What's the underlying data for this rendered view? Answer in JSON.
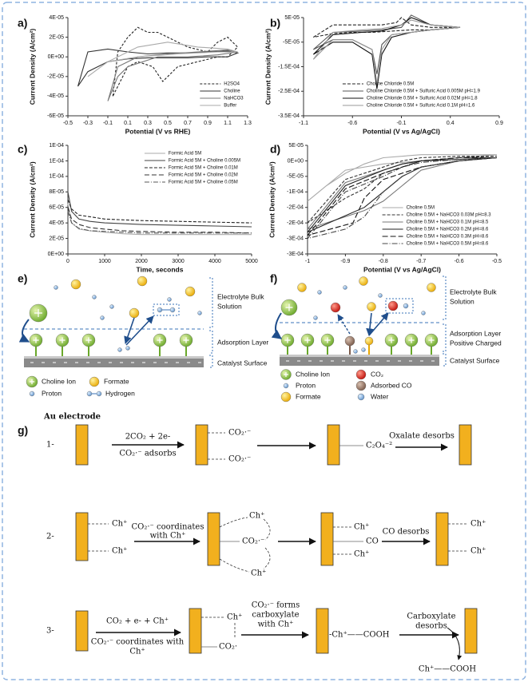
{
  "chart_data": [
    {
      "type": "line",
      "panel_label": "a)",
      "xlabel": "Potential  (V vs RHE)",
      "ylabel": "Current Density (A/cm²)",
      "xlim": [
        -0.5,
        1.3
      ],
      "ylim": [
        -6e-05,
        4e-05
      ],
      "xticks": [
        -0.5,
        -0.3,
        -0.1,
        0.1,
        0.3,
        0.5,
        0.7,
        0.9,
        1.1,
        1.3
      ],
      "yticks": [
        {
          "value": 4e-05,
          "label": "4E-05"
        },
        {
          "value": 2e-05,
          "label": "2E-05"
        },
        {
          "value": 0,
          "label": "0E+00"
        },
        {
          "value": -2e-05,
          "label": "-2E-05"
        },
        {
          "value": -4e-05,
          "label": "-4E-05"
        },
        {
          "value": -6e-05,
          "label": "-6E-05"
        }
      ],
      "legend": "lower right",
      "series": [
        {
          "name": "H2SO4",
          "color": "#222222",
          "dash": "3 2",
          "x": [
            -0.05,
            0.0,
            0.1,
            0.2,
            0.3,
            0.4,
            0.5,
            0.7,
            0.9,
            1.0,
            1.1,
            1.2,
            1.1,
            1.0,
            0.8,
            0.6,
            0.45,
            0.35,
            0.2,
            0.1,
            0.0,
            -0.05
          ],
          "values": [
            -4e-05,
            5e-06,
            2e-05,
            3e-05,
            2.5e-05,
            2.5e-05,
            2e-05,
            1e-05,
            5e-06,
            1.5e-05,
            2e-05,
            1e-05,
            0,
            0,
            -5e-06,
            -1e-05,
            -2.5e-05,
            -1e-05,
            -5e-06,
            -1e-05,
            -3e-05,
            -4e-05
          ]
        },
        {
          "name": "Choline",
          "color": "#333333",
          "dash": "",
          "x": [
            -0.4,
            -0.3,
            -0.1,
            0.1,
            0.3,
            0.5,
            0.7,
            0.9,
            1.1,
            1.2,
            1.1,
            0.9,
            0.7,
            0.5,
            0.3,
            0.1,
            -0.1,
            -0.3,
            -0.4
          ],
          "values": [
            -3e-05,
            5e-06,
            8e-06,
            5e-06,
            3e-06,
            4e-06,
            4e-06,
            5e-06,
            6e-06,
            4e-06,
            0,
            0,
            -1e-06,
            -1e-06,
            -1e-06,
            -2e-06,
            -5e-06,
            -1.5e-05,
            -3e-05
          ]
        },
        {
          "name": "NaHCO3",
          "color": "#777777",
          "dash": "",
          "x": [
            -0.1,
            0.0,
            0.2,
            0.5,
            0.8,
            1.1,
            1.2,
            1.0,
            0.7,
            0.4,
            0.1,
            0.0,
            -0.1
          ],
          "values": [
            -4.5e-05,
            -1e-05,
            0,
            3e-06,
            5e-06,
            7e-06,
            5e-06,
            2e-06,
            0,
            0,
            -1e-05,
            -2e-05,
            -4.5e-05
          ]
        },
        {
          "name": "Buffer",
          "color": "#aaaaaa",
          "dash": "",
          "x": [
            -0.3,
            -0.1,
            0.2,
            0.5,
            0.8,
            1.1,
            1.2,
            1.0,
            0.6,
            0.2,
            -0.1,
            -0.3
          ],
          "values": [
            -2e-05,
            -5e-06,
            1e-05,
            1.5e-05,
            1e-05,
            8e-06,
            5e-06,
            5e-06,
            3e-06,
            0,
            -5e-06,
            -2e-05
          ]
        }
      ]
    },
    {
      "type": "line",
      "panel_label": "b)",
      "xlabel": "Potential  (V vs Ag/AgCl)",
      "ylabel": "Current Density (A/cm²)",
      "xlim": [
        -1.1,
        0.9
      ],
      "ylim": [
        -0.00035,
        5e-05
      ],
      "xticks": [
        -1.1,
        -0.6,
        -0.1,
        0.4,
        0.9
      ],
      "yticks": [
        {
          "value": 5e-05,
          "label": "5E-05"
        },
        {
          "value": -5e-05,
          "label": "-5E-05"
        },
        {
          "value": -0.00015,
          "label": "-1.5E-04"
        },
        {
          "value": -0.00025,
          "label": "-2.5E-04"
        },
        {
          "value": -0.00035,
          "label": "-3.5E-04"
        }
      ],
      "legend": "lower right",
      "series": [
        {
          "name": "Choline Chloride 0.5M",
          "color": "#222222",
          "dash": "4 2",
          "x": [
            -1.0,
            -0.8,
            -0.5,
            -0.3,
            -0.15,
            -0.1,
            0.0,
            0.2,
            0.5,
            0.2,
            0.0,
            -0.2,
            -0.4,
            -0.6,
            -0.8,
            -1.0
          ],
          "values": [
            -3e-05,
            2e-05,
            2e-05,
            2e-05,
            3e-05,
            5e-05,
            2e-05,
            1e-05,
            1e-05,
            0,
            0,
            -5e-06,
            -1e-05,
            -1e-05,
            -1.5e-05,
            -3e-05
          ]
        },
        {
          "name": "Choline Chloride 0.5M + Sulfuric Acid 0.005M pH=1.9",
          "color": "#555555",
          "dash": "",
          "x": [
            -1.0,
            -0.8,
            -0.5,
            -0.3,
            -0.1,
            0.0,
            0.2,
            0.5,
            0.2,
            0.0,
            -0.2,
            -0.3,
            -0.35,
            -0.4,
            -0.6,
            -0.8,
            -1.0
          ],
          "values": [
            -8e-05,
            -1e-05,
            -5e-06,
            0,
            1e-05,
            6e-05,
            2e-05,
            1e-05,
            0,
            -1e-05,
            -2e-05,
            -6e-05,
            -0.00018,
            -8e-05,
            -4e-05,
            -4e-05,
            -8e-05
          ]
        },
        {
          "name": "Choline Chloride 0.5M + Sulfuric Acid 0.02M pH=1.8",
          "color": "#111111",
          "dash": "",
          "x": [
            -1.0,
            -0.8,
            -0.5,
            -0.3,
            -0.1,
            0.0,
            0.2,
            0.5,
            0.2,
            0.0,
            -0.2,
            -0.3,
            -0.35,
            -0.4,
            -0.6,
            -0.8,
            -1.0
          ],
          "values": [
            -0.0001,
            -2e-05,
            -1e-05,
            -5e-06,
            2e-05,
            5e-05,
            2e-05,
            1e-05,
            0,
            -1e-05,
            -3e-05,
            -0.0001,
            -0.00024,
            -0.0001,
            -5e-05,
            -5e-05,
            -0.0001
          ]
        },
        {
          "name": "Choline Chloride 0.5M + Sulfuric Acid 0.1M pH=1.6",
          "color": "#999999",
          "dash": "",
          "x": [
            -1.0,
            -0.8,
            -0.5,
            -0.3,
            -0.1,
            0.0,
            0.2,
            0.5,
            0.2,
            0.0,
            -0.2,
            -0.3,
            -0.35,
            -0.4,
            -0.6,
            -0.8,
            -1.0
          ],
          "values": [
            -0.00012,
            -1e-05,
            0,
            5e-06,
            2e-05,
            4e-05,
            2e-05,
            1e-05,
            0,
            -1e-05,
            -2e-05,
            -8e-05,
            -0.00022,
            -8e-05,
            -4e-05,
            -4e-05,
            -0.00012
          ]
        }
      ]
    },
    {
      "type": "line",
      "panel_label": "c)",
      "xlabel": "Time, seconds",
      "ylabel": "Current Density (A/cm²)",
      "xlim": [
        0,
        5000
      ],
      "ylim": [
        0,
        0.00014
      ],
      "xticks": [
        0,
        1000,
        2000,
        3000,
        4000,
        5000
      ],
      "yticks": [
        {
          "value": 0.00014,
          "label": "1E-04"
        },
        {
          "value": 0.00012,
          "label": "1E-04"
        },
        {
          "value": 0.0001,
          "label": "1E-04"
        },
        {
          "value": 8e-05,
          "label": "8E-05"
        },
        {
          "value": 6e-05,
          "label": "6E-05"
        },
        {
          "value": 4e-05,
          "label": "4E-05"
        },
        {
          "value": 2e-05,
          "label": "2E-05"
        },
        {
          "value": 0,
          "label": "0E+00"
        }
      ],
      "legend": "upper right",
      "series": [
        {
          "name": "Formic Acid 5M",
          "color": "#aaaaaa",
          "dash": "",
          "x": [
            0,
            100,
            300,
            600,
            1000,
            1500,
            2000,
            3000,
            4000,
            5000
          ],
          "values": [
            6.5e-05,
            4e-05,
            3.2e-05,
            3e-05,
            2.8e-05,
            2.6e-05,
            2.5e-05,
            2.5e-05,
            2.5e-05,
            2.5e-05
          ]
        },
        {
          "name": "Formic Acid 5M + Choline 0.005M",
          "color": "#444444",
          "dash": "",
          "x": [
            0,
            100,
            300,
            600,
            1000,
            1500,
            2000,
            3000,
            4000,
            5000
          ],
          "values": [
            8e-05,
            5.5e-05,
            4.5e-05,
            4.2e-05,
            4e-05,
            3.9e-05,
            3.8e-05,
            3.7e-05,
            3.6e-05,
            3.5e-05
          ]
        },
        {
          "name": "Formic Acid 5M + Choline 0.01M",
          "color": "#222222",
          "dash": "4 2",
          "x": [
            0,
            100,
            300,
            600,
            1000,
            1500,
            2000,
            3000,
            4000,
            5000
          ],
          "values": [
            7e-05,
            5.8e-05,
            5e-05,
            4.8e-05,
            4.5e-05,
            4.4e-05,
            4.3e-05,
            4.2e-05,
            4.1e-05,
            4e-05
          ]
        },
        {
          "name": "Formic Acid 5M + Choline 0.02M",
          "color": "#333333",
          "dash": "6 3",
          "x": [
            0,
            100,
            300,
            600,
            1000,
            1500,
            2000,
            3000,
            4000,
            5000
          ],
          "values": [
            6e-05,
            4.5e-05,
            3.8e-05,
            3.4e-05,
            3.2e-05,
            3e-05,
            2.9e-05,
            2.8e-05,
            2.8e-05,
            2.7e-05
          ]
        },
        {
          "name": "Formic Acid 5M + Choline 0.05M",
          "color": "#555555",
          "dash": "6 2 1 2",
          "x": [
            0,
            100,
            300,
            600,
            1000,
            1500,
            2000,
            3000,
            4000,
            5000
          ],
          "values": [
            5.5e-05,
            4e-05,
            3.3e-05,
            3e-05,
            2.9e-05,
            2.8e-05,
            2.7e-05,
            2.7e-05,
            2.7e-05,
            2.7e-05
          ]
        }
      ]
    },
    {
      "type": "line",
      "panel_label": "d)",
      "xlabel": "Potential  (V vs Ag/AgCl)",
      "ylabel": "Current Density (A/cm²)",
      "xlim": [
        -1,
        -0.5
      ],
      "ylim": [
        -0.0003,
        5e-05
      ],
      "xticks": [
        -1,
        -0.9,
        -0.8,
        -0.7,
        -0.6,
        -0.5
      ],
      "yticks": [
        {
          "value": 5e-05,
          "label": "5E-05"
        },
        {
          "value": 0,
          "label": "0E+00"
        },
        {
          "value": -5e-05,
          "label": "-5E-05"
        },
        {
          "value": -0.0001,
          "label": "-1E-04"
        },
        {
          "value": -0.00015,
          "label": "-2E-04"
        },
        {
          "value": -0.0002,
          "label": "-2E-04"
        },
        {
          "value": -0.00025,
          "label": "-3E-04"
        },
        {
          "value": -0.0003,
          "label": "-3E-04"
        }
      ],
      "legend": "lower right",
      "series": [
        {
          "name": "Choline 0.5M",
          "color": "#aaaaaa",
          "dash": "",
          "x": [
            -1,
            -0.95,
            -0.9,
            -0.85,
            -0.8,
            -0.7,
            -0.6,
            -0.5,
            -0.6,
            -0.7,
            -0.8,
            -0.9,
            -1
          ],
          "values": [
            -0.00013,
            -8e-05,
            -4e-05,
            -1e-05,
            1e-05,
            2e-05,
            2e-05,
            2e-05,
            1e-05,
            0,
            -1e-05,
            -3e-05,
            -0.00013
          ]
        },
        {
          "name": "Choline 0.5M + NaHCO3 0.03M pH=8.3",
          "color": "#333333",
          "dash": "4 2",
          "x": [
            -1,
            -0.9,
            -0.8,
            -0.75,
            -0.7,
            -0.6,
            -0.5,
            -0.6,
            -0.7,
            -0.8,
            -0.85,
            -0.9,
            -1
          ],
          "values": [
            -0.0002,
            -6e-05,
            -2e-05,
            0,
            1e-05,
            1.5e-05,
            1.5e-05,
            1e-05,
            0,
            -4e-05,
            -9e-05,
            -0.00012,
            -0.0002
          ]
        },
        {
          "name": "Choline 0.5M + NaHCO3 0.1M pH=8.5",
          "color": "#777777",
          "dash": "",
          "x": [
            -1,
            -0.9,
            -0.8,
            -0.75,
            -0.7,
            -0.6,
            -0.5,
            -0.6,
            -0.7,
            -0.75,
            -0.8,
            -0.85,
            -1
          ],
          "values": [
            -0.00022,
            -7e-05,
            -3e-05,
            -1e-05,
            0,
            1e-05,
            1e-05,
            0,
            -3e-05,
            -8e-05,
            -0.00013,
            -0.00016,
            -0.00022
          ]
        },
        {
          "name": "Choline 0.5M + NaHCO3 0.2M pH=8.6",
          "color": "#222222",
          "dash": "",
          "x": [
            -1,
            -0.9,
            -0.8,
            -0.75,
            -0.7,
            -0.6,
            -0.5,
            -0.6,
            -0.7,
            -0.75,
            -0.8,
            -0.85,
            -1
          ],
          "values": [
            -0.00023,
            -8e-05,
            -3e-05,
            -1e-05,
            0,
            5e-06,
            1e-05,
            0,
            -2e-05,
            -5e-05,
            -0.0001,
            -0.00015,
            -0.00023
          ]
        },
        {
          "name": "Choline 0.5M + NaHCO3 0.3M pH=8.6",
          "color": "#111111",
          "dash": "7 3",
          "x": [
            -1,
            -0.9,
            -0.8,
            -0.75,
            -0.7,
            -0.6,
            -0.5,
            -0.6,
            -0.7,
            -0.8,
            -0.85,
            -0.88,
            -1
          ],
          "values": [
            -0.00024,
            -9e-05,
            -4e-05,
            -2e-05,
            0,
            1e-05,
            1e-05,
            0,
            -2e-05,
            -6e-05,
            -0.00012,
            -0.0002,
            -0.00024
          ]
        },
        {
          "name": "Choline 0.5M + NaHCO3 0.5M pH=8.6",
          "color": "#444444",
          "dash": "7 2 1 2",
          "x": [
            -1,
            -0.9,
            -0.8,
            -0.75,
            -0.7,
            -0.6,
            -0.5,
            -0.6,
            -0.7,
            -0.75,
            -0.8,
            -0.85,
            -0.9,
            -1
          ],
          "values": [
            -0.00025,
            -0.0001,
            -5e-05,
            -2e-05,
            -5e-06,
            5e-06,
            1e-05,
            0,
            -2e-05,
            -5e-05,
            -0.0001,
            -0.00018,
            -0.00022,
            -0.00025
          ]
        }
      ]
    }
  ],
  "panel_e": {
    "label": "e)",
    "bulk": [
      "Electrolyte Bulk",
      "Solution"
    ],
    "adsorption": [
      "Adsorption Layer"
    ],
    "surface": "Catalyst Surface",
    "legend": [
      "Choline Ion",
      "Formate",
      "Proton",
      "Hydrogen"
    ]
  },
  "panel_f": {
    "label": "f)",
    "bulk": [
      "Electrolyte Bulk",
      "Solution"
    ],
    "adsorption": [
      "Adsorption Layer",
      "Positive Charged"
    ],
    "surface": "Catalyst Surface",
    "legend": [
      "Choline Ion",
      "CO₂",
      "Proton",
      "Adsorbed CO",
      "Formate",
      "Water"
    ]
  },
  "panel_g": {
    "label": "g)",
    "electrode": "Au electrode",
    "rows": [
      {
        "number": "1-",
        "texts": [
          "2CO₂  + 2e-",
          "CO₂·⁻ adsorbs",
          "CO₂·⁻",
          "CO₂·⁻",
          "C₂O₄⁻²",
          "Oxalate desorbs"
        ]
      },
      {
        "number": "2-",
        "texts": [
          "Ch⁺",
          "Ch⁺",
          "CO₂·⁻ coordinates",
          "with Ch⁺",
          "Ch⁺",
          "CO₂·⁻",
          "Ch⁺",
          "Ch⁺",
          "CO",
          "Ch⁺",
          "CO desorbs",
          "Ch⁺",
          "Ch⁺"
        ]
      },
      {
        "number": "3-",
        "texts": [
          "CO₂ + e- + Ch⁺",
          "CO₂·⁻ coordinates with",
          "Ch⁺",
          "Ch⁺",
          "CO₂·",
          "CO₂·⁻ forms",
          "carboxylate",
          "with Ch⁺",
          "-Ch⁺——COOH",
          "Carboxylate",
          "desorbs",
          "Ch⁺——COOH"
        ]
      }
    ]
  }
}
